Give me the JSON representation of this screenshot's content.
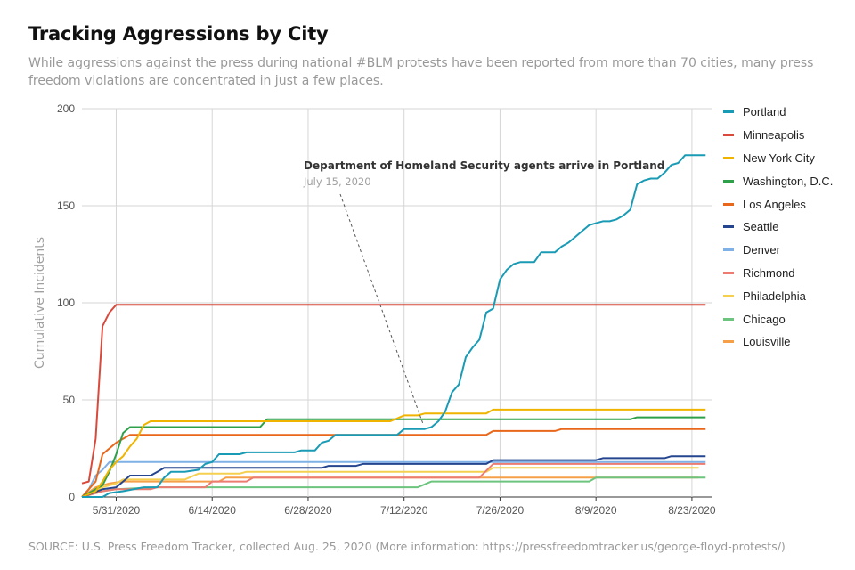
{
  "header": {
    "title": "Tracking Aggressions by City",
    "subtitle": "While aggressions against the press during national #BLM protests have been reported from more than 70 cities, many press freedom violations are concentrated in just a few places."
  },
  "footer": {
    "source": "SOURCE: U.S. Press Freedom Tracker, collected Aug. 25, 2020 (More information: https://pressfreedomtracker.us/george-floyd-protests/)"
  },
  "chart_data": {
    "type": "line",
    "ylabel": "Cumulative Incidents",
    "xlabel": "",
    "ylim": [
      0,
      200
    ],
    "yticks": [
      0,
      50,
      100,
      150,
      200
    ],
    "xlim": [
      "2020-05-26",
      "2020-08-26"
    ],
    "xticks": [
      {
        "date": "2020-05-31",
        "label": "5/31/2020"
      },
      {
        "date": "2020-06-14",
        "label": "6/14/2020"
      },
      {
        "date": "2020-06-28",
        "label": "6/28/2020"
      },
      {
        "date": "2020-07-12",
        "label": "7/12/2020"
      },
      {
        "date": "2020-07-26",
        "label": "7/26/2020"
      },
      {
        "date": "2020-08-09",
        "label": "8/9/2020"
      },
      {
        "date": "2020-08-23",
        "label": "8/23/2020"
      }
    ],
    "grid": true,
    "legend_position": "right",
    "annotation": {
      "title": "Department of Homeland Security agents arrive in Portland",
      "subtitle": "July 15, 2020",
      "date": "2020-07-15",
      "value": 37
    },
    "series": [
      {
        "name": "Portland",
        "color": "#1a9bb5",
        "points": [
          [
            "2020-05-26",
            0
          ],
          [
            "2020-05-29",
            0
          ],
          [
            "2020-05-30",
            2
          ],
          [
            "2020-06-01",
            3
          ],
          [
            "2020-06-04",
            5
          ],
          [
            "2020-06-06",
            5
          ],
          [
            "2020-06-07",
            10
          ],
          [
            "2020-06-08",
            13
          ],
          [
            "2020-06-10",
            13
          ],
          [
            "2020-06-12",
            14
          ],
          [
            "2020-06-13",
            17
          ],
          [
            "2020-06-14",
            18
          ],
          [
            "2020-06-15",
            22
          ],
          [
            "2020-06-18",
            22
          ],
          [
            "2020-06-19",
            23
          ],
          [
            "2020-06-26",
            23
          ],
          [
            "2020-06-27",
            24
          ],
          [
            "2020-06-29",
            24
          ],
          [
            "2020-06-30",
            28
          ],
          [
            "2020-07-01",
            29
          ],
          [
            "2020-07-02",
            32
          ],
          [
            "2020-07-11",
            32
          ],
          [
            "2020-07-12",
            35
          ],
          [
            "2020-07-15",
            35
          ],
          [
            "2020-07-16",
            36
          ],
          [
            "2020-07-17",
            39
          ],
          [
            "2020-07-18",
            44
          ],
          [
            "2020-07-19",
            54
          ],
          [
            "2020-07-20",
            58
          ],
          [
            "2020-07-21",
            72
          ],
          [
            "2020-07-22",
            77
          ],
          [
            "2020-07-23",
            81
          ],
          [
            "2020-07-24",
            95
          ],
          [
            "2020-07-25",
            97
          ],
          [
            "2020-07-26",
            112
          ],
          [
            "2020-07-27",
            117
          ],
          [
            "2020-07-28",
            120
          ],
          [
            "2020-07-29",
            121
          ],
          [
            "2020-07-31",
            121
          ],
          [
            "2020-08-01",
            126
          ],
          [
            "2020-08-03",
            126
          ],
          [
            "2020-08-04",
            129
          ],
          [
            "2020-08-05",
            131
          ],
          [
            "2020-08-06",
            134
          ],
          [
            "2020-08-07",
            137
          ],
          [
            "2020-08-08",
            140
          ],
          [
            "2020-08-09",
            141
          ],
          [
            "2020-08-10",
            142
          ],
          [
            "2020-08-11",
            142
          ],
          [
            "2020-08-12",
            143
          ],
          [
            "2020-08-13",
            145
          ],
          [
            "2020-08-14",
            148
          ],
          [
            "2020-08-15",
            161
          ],
          [
            "2020-08-16",
            163
          ],
          [
            "2020-08-17",
            164
          ],
          [
            "2020-08-18",
            164
          ],
          [
            "2020-08-19",
            167
          ],
          [
            "2020-08-20",
            171
          ],
          [
            "2020-08-21",
            172
          ],
          [
            "2020-08-22",
            176
          ],
          [
            "2020-08-25",
            176
          ]
        ]
      },
      {
        "name": "Minneapolis",
        "color": "#d94a3d",
        "points": [
          [
            "2020-05-26",
            7
          ],
          [
            "2020-05-27",
            8
          ],
          [
            "2020-05-28",
            30
          ],
          [
            "2020-05-29",
            88
          ],
          [
            "2020-05-30",
            95
          ],
          [
            "2020-05-31",
            99
          ],
          [
            "2020-08-25",
            99
          ]
        ]
      },
      {
        "name": "New York City",
        "color": "#f0b400",
        "points": [
          [
            "2020-05-26",
            0
          ],
          [
            "2020-05-28",
            3
          ],
          [
            "2020-05-29",
            8
          ],
          [
            "2020-05-30",
            14
          ],
          [
            "2020-05-31",
            18
          ],
          [
            "2020-06-01",
            21
          ],
          [
            "2020-06-02",
            26
          ],
          [
            "2020-06-03",
            30
          ],
          [
            "2020-06-04",
            37
          ],
          [
            "2020-06-05",
            39
          ],
          [
            "2020-07-10",
            39
          ],
          [
            "2020-07-12",
            42
          ],
          [
            "2020-07-14",
            42
          ],
          [
            "2020-07-15",
            43
          ],
          [
            "2020-07-24",
            43
          ],
          [
            "2020-07-25",
            45
          ],
          [
            "2020-08-25",
            45
          ]
        ]
      },
      {
        "name": "Washington, D.C.",
        "color": "#2ea04a",
        "points": [
          [
            "2020-05-26",
            0
          ],
          [
            "2020-05-29",
            6
          ],
          [
            "2020-05-30",
            13
          ],
          [
            "2020-05-31",
            22
          ],
          [
            "2020-06-01",
            33
          ],
          [
            "2020-06-02",
            36
          ],
          [
            "2020-06-21",
            36
          ],
          [
            "2020-06-22",
            40
          ],
          [
            "2020-08-14",
            40
          ],
          [
            "2020-08-15",
            41
          ],
          [
            "2020-08-25",
            41
          ]
        ]
      },
      {
        "name": "Los Angeles",
        "color": "#e8671b",
        "points": [
          [
            "2020-05-26",
            0
          ],
          [
            "2020-05-28",
            8
          ],
          [
            "2020-05-29",
            22
          ],
          [
            "2020-05-30",
            25
          ],
          [
            "2020-05-31",
            28
          ],
          [
            "2020-06-01",
            30
          ],
          [
            "2020-06-02",
            32
          ],
          [
            "2020-07-24",
            32
          ],
          [
            "2020-07-25",
            34
          ],
          [
            "2020-08-03",
            34
          ],
          [
            "2020-08-04",
            35
          ],
          [
            "2020-08-25",
            35
          ]
        ]
      },
      {
        "name": "Seattle",
        "color": "#25468f",
        "points": [
          [
            "2020-05-26",
            0
          ],
          [
            "2020-05-29",
            4
          ],
          [
            "2020-05-31",
            5
          ],
          [
            "2020-06-01",
            8
          ],
          [
            "2020-06-02",
            11
          ],
          [
            "2020-06-05",
            11
          ],
          [
            "2020-06-06",
            13
          ],
          [
            "2020-06-07",
            15
          ],
          [
            "2020-06-14",
            15
          ],
          [
            "2020-06-15",
            15
          ],
          [
            "2020-06-20",
            15
          ],
          [
            "2020-06-30",
            15
          ],
          [
            "2020-07-01",
            16
          ],
          [
            "2020-07-05",
            16
          ],
          [
            "2020-07-06",
            17
          ],
          [
            "2020-07-24",
            17
          ],
          [
            "2020-07-25",
            19
          ],
          [
            "2020-08-09",
            19
          ],
          [
            "2020-08-10",
            20
          ],
          [
            "2020-08-19",
            20
          ],
          [
            "2020-08-20",
            21
          ],
          [
            "2020-08-25",
            21
          ]
        ]
      },
      {
        "name": "Denver",
        "color": "#7fb0e6",
        "points": [
          [
            "2020-05-26",
            0
          ],
          [
            "2020-05-27",
            4
          ],
          [
            "2020-05-28",
            11
          ],
          [
            "2020-05-29",
            14
          ],
          [
            "2020-05-30",
            18
          ],
          [
            "2020-08-25",
            18
          ]
        ]
      },
      {
        "name": "Richmond",
        "color": "#ec7b72",
        "points": [
          [
            "2020-05-26",
            0
          ],
          [
            "2020-05-29",
            3
          ],
          [
            "2020-05-31",
            4
          ],
          [
            "2020-06-05",
            4
          ],
          [
            "2020-06-06",
            5
          ],
          [
            "2020-06-13",
            5
          ],
          [
            "2020-06-14",
            8
          ],
          [
            "2020-06-19",
            8
          ],
          [
            "2020-06-20",
            10
          ],
          [
            "2020-07-23",
            10
          ],
          [
            "2020-07-25",
            17
          ],
          [
            "2020-08-25",
            17
          ]
        ]
      },
      {
        "name": "Philadelphia",
        "color": "#f5cf4e",
        "points": [
          [
            "2020-05-26",
            0
          ],
          [
            "2020-05-29",
            5
          ],
          [
            "2020-05-31",
            7
          ],
          [
            "2020-06-01",
            9
          ],
          [
            "2020-06-10",
            9
          ],
          [
            "2020-06-12",
            12
          ],
          [
            "2020-06-18",
            12
          ],
          [
            "2020-06-19",
            13
          ],
          [
            "2020-07-24",
            13
          ],
          [
            "2020-07-25",
            15
          ],
          [
            "2020-08-24",
            15
          ]
        ]
      },
      {
        "name": "Chicago",
        "color": "#6cc47e",
        "points": [
          [
            "2020-05-26",
            0
          ],
          [
            "2020-05-29",
            3
          ],
          [
            "2020-05-31",
            4
          ],
          [
            "2020-06-06",
            5
          ],
          [
            "2020-07-14",
            5
          ],
          [
            "2020-07-16",
            8
          ],
          [
            "2020-08-08",
            8
          ],
          [
            "2020-08-09",
            10
          ],
          [
            "2020-08-25",
            10
          ]
        ]
      },
      {
        "name": "Louisville",
        "color": "#f5a049",
        "points": [
          [
            "2020-05-26",
            0
          ],
          [
            "2020-05-28",
            5
          ],
          [
            "2020-05-30",
            7
          ],
          [
            "2020-06-01",
            8
          ],
          [
            "2020-06-15",
            8
          ],
          [
            "2020-06-16",
            10
          ],
          [
            "2020-08-24",
            10
          ]
        ]
      }
    ]
  }
}
